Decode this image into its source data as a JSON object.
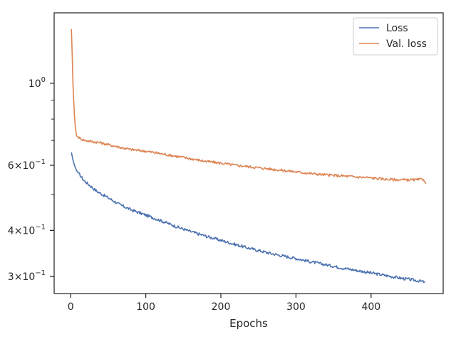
{
  "chart_data": {
    "type": "line",
    "title": "",
    "xlabel": "Epochs",
    "ylabel": "",
    "x_scale": "linear",
    "y_scale": "log",
    "xlim": [
      -22,
      496
    ],
    "ylim": [
      0.27,
      1.55
    ],
    "x_ticks": [
      {
        "value": 0,
        "label": "0"
      },
      {
        "value": 100,
        "label": "100"
      },
      {
        "value": 200,
        "label": "200"
      },
      {
        "value": 300,
        "label": "300"
      },
      {
        "value": 400,
        "label": "400"
      }
    ],
    "y_major_ticks": [
      {
        "value": 1.0,
        "base": "10",
        "exp": "0",
        "coef": ""
      },
      {
        "value": 0.6,
        "base": "10",
        "exp": "−1",
        "coef": "6×"
      },
      {
        "value": 0.4,
        "base": "10",
        "exp": "−1",
        "coef": "4×"
      },
      {
        "value": 0.3,
        "base": "10",
        "exp": "−1",
        "coef": "3×"
      }
    ],
    "y_minor_ticks": [
      0.5,
      0.7,
      0.8,
      0.9
    ],
    "grid": false,
    "legend_position": "top-right",
    "series": [
      {
        "name": "Loss",
        "color": "#4c72b0",
        "points": [
          [
            1,
            0.65
          ],
          [
            3,
            0.62
          ],
          [
            5,
            0.6
          ],
          [
            8,
            0.58
          ],
          [
            12,
            0.565
          ],
          [
            18,
            0.545
          ],
          [
            25,
            0.53
          ],
          [
            35,
            0.51
          ],
          [
            50,
            0.49
          ],
          [
            65,
            0.47
          ],
          [
            80,
            0.455
          ],
          [
            100,
            0.44
          ],
          [
            120,
            0.425
          ],
          [
            140,
            0.41
          ],
          [
            160,
            0.397
          ],
          [
            180,
            0.386
          ],
          [
            200,
            0.376
          ],
          [
            220,
            0.366
          ],
          [
            240,
            0.357
          ],
          [
            260,
            0.349
          ],
          [
            280,
            0.342
          ],
          [
            300,
            0.336
          ],
          [
            320,
            0.329
          ],
          [
            340,
            0.323
          ],
          [
            360,
            0.317
          ],
          [
            380,
            0.312
          ],
          [
            400,
            0.307
          ],
          [
            420,
            0.302
          ],
          [
            440,
            0.297
          ],
          [
            460,
            0.293
          ],
          [
            472,
            0.29
          ]
        ]
      },
      {
        "name": "Val. loss",
        "color": "#dd8452",
        "points": [
          [
            1,
            1.4
          ],
          [
            2,
            1.2
          ],
          [
            3,
            1.0
          ],
          [
            4,
            0.9
          ],
          [
            5,
            0.82
          ],
          [
            6,
            0.77
          ],
          [
            7,
            0.74
          ],
          [
            8,
            0.72
          ],
          [
            10,
            0.715
          ],
          [
            15,
            0.705
          ],
          [
            20,
            0.7
          ],
          [
            30,
            0.695
          ],
          [
            40,
            0.69
          ],
          [
            50,
            0.682
          ],
          [
            60,
            0.675
          ],
          [
            70,
            0.668
          ],
          [
            80,
            0.662
          ],
          [
            100,
            0.655
          ],
          [
            120,
            0.645
          ],
          [
            140,
            0.635
          ],
          [
            160,
            0.625
          ],
          [
            180,
            0.615
          ],
          [
            200,
            0.608
          ],
          [
            220,
            0.6
          ],
          [
            240,
            0.594
          ],
          [
            260,
            0.588
          ],
          [
            280,
            0.582
          ],
          [
            300,
            0.576
          ],
          [
            320,
            0.57
          ],
          [
            340,
            0.565
          ],
          [
            360,
            0.562
          ],
          [
            380,
            0.558
          ],
          [
            400,
            0.555
          ],
          [
            420,
            0.55
          ],
          [
            440,
            0.548
          ],
          [
            460,
            0.548
          ],
          [
            470,
            0.55
          ],
          [
            473,
            0.535
          ]
        ]
      }
    ]
  }
}
